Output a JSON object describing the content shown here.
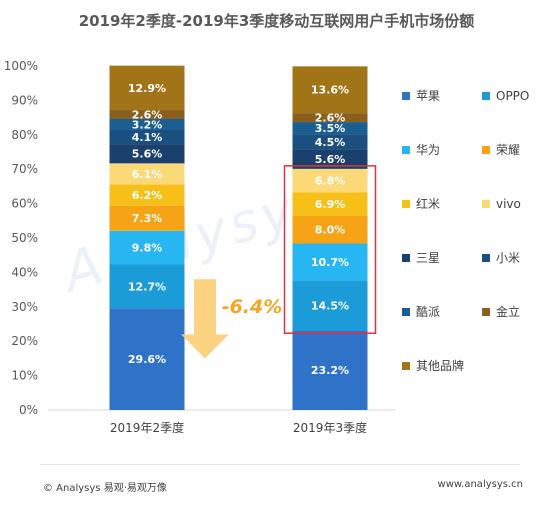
{
  "title": "2019年2季度-2019年3季度移动互联网用户手机市场份额",
  "footer": {
    "left": "© Analysys 易观·易观万像",
    "right": "www.analysys.cn"
  },
  "watermark": "Analysys",
  "annotation": {
    "change": "-6.4%"
  },
  "colors": {
    "apple": "#2f73c8",
    "oppo": "#1b9bd8",
    "huawei": "#27b6f2",
    "honor": "#f6a316",
    "redmi": "#f7c018",
    "vivo": "#fbd978",
    "samsung": "#1c406e",
    "xiaomi": "#1b4f80",
    "coolpad": "#1b5e92",
    "gionee": "#8a5f1d",
    "other": "#a07417",
    "highlight": "#d9343f",
    "arrow": "#fcd17a",
    "annotation_text": "#f5a623"
  },
  "chart_data": {
    "type": "bar",
    "stacked": true,
    "percent": true,
    "categories": [
      "2019年2季度",
      "2019年3季度"
    ],
    "ylim": [
      0,
      100
    ],
    "yticks": [
      "0%",
      "10%",
      "20%",
      "30%",
      "40%",
      "50%",
      "60%",
      "70%",
      "80%",
      "90%",
      "100%"
    ],
    "series": [
      {
        "name": "苹果",
        "color_key": "apple",
        "values": [
          29.6,
          23.2
        ],
        "labels": [
          "29.6%",
          "23.2%"
        ]
      },
      {
        "name": "OPPO",
        "color_key": "oppo",
        "values": [
          12.7,
          14.5
        ],
        "labels": [
          "12.7%",
          "14.5%"
        ]
      },
      {
        "name": "华为",
        "color_key": "huawei",
        "values": [
          9.8,
          10.7
        ],
        "labels": [
          "9.8%",
          "10.7%"
        ]
      },
      {
        "name": "荣耀",
        "color_key": "honor",
        "values": [
          7.3,
          8.0
        ],
        "labels": [
          "7.3%",
          "8.0%"
        ]
      },
      {
        "name": "红米",
        "color_key": "redmi",
        "values": [
          6.2,
          6.9
        ],
        "labels": [
          "6.2%",
          "6.9%"
        ]
      },
      {
        "name": "vivo",
        "color_key": "vivo",
        "values": [
          6.1,
          6.8
        ],
        "labels": [
          "6.1%",
          "6.8%"
        ]
      },
      {
        "name": "三星",
        "color_key": "samsung",
        "values": [
          5.6,
          5.6
        ],
        "labels": [
          "5.6%",
          "5.6%"
        ]
      },
      {
        "name": "小米",
        "color_key": "xiaomi",
        "values": [
          4.1,
          4.5
        ],
        "labels": [
          "4.1%",
          "4.5%"
        ]
      },
      {
        "name": "酷派",
        "color_key": "coolpad",
        "values": [
          3.2,
          3.5
        ],
        "labels": [
          "3.2%",
          "3.5%"
        ]
      },
      {
        "name": "金立",
        "color_key": "gionee",
        "values": [
          2.6,
          2.6
        ],
        "labels": [
          "2.6%",
          "2.6%"
        ]
      },
      {
        "name": "其他品牌",
        "color_key": "other",
        "values": [
          12.9,
          13.6
        ],
        "labels": [
          "12.9%",
          "13.6%"
        ]
      }
    ],
    "legend_position": "right",
    "grid": false
  }
}
